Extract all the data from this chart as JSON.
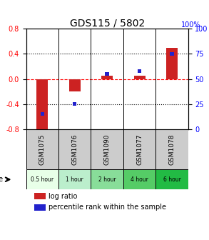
{
  "title": "GDS115 / 5802",
  "samples": [
    "GSM1075",
    "GSM1076",
    "GSM1090",
    "GSM1077",
    "GSM1078"
  ],
  "time_labels": [
    "0.5 hour",
    "1 hour",
    "2 hour",
    "4 hour",
    "6 hour"
  ],
  "log_ratios": [
    -0.855,
    -0.2,
    0.05,
    0.05,
    0.5
  ],
  "percentile_ranks": [
    15,
    25,
    55,
    58,
    75
  ],
  "ylim": [
    -0.8,
    0.8
  ],
  "yticks_left": [
    -0.8,
    -0.4,
    0.0,
    0.4,
    0.8
  ],
  "yticks_right": [
    0,
    25,
    50,
    75,
    100
  ],
  "bar_color": "#cc2222",
  "dot_color": "#2222cc",
  "sample_bg": "#cccccc",
  "time_colors": [
    "#e8ffe8",
    "#bbeecc",
    "#88dd99",
    "#55cc66",
    "#22bb44"
  ],
  "figsize": [
    2.93,
    3.36
  ],
  "dpi": 100
}
